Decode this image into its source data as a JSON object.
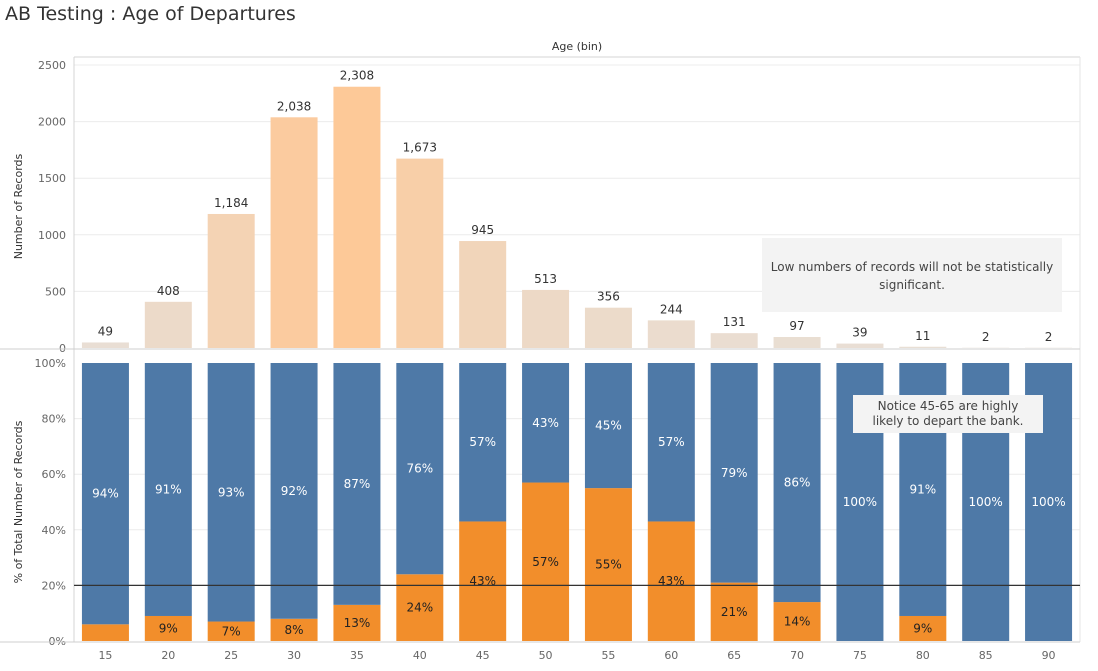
{
  "page": {
    "title": "AB Testing : Age of Departures"
  },
  "colors": {
    "stay_bar": "#4e79a7",
    "depart_bar": "#f28e2b",
    "count_scale_low": "#e8dfd6",
    "count_scale_high": "#fdc998",
    "grid": "#ececec",
    "reference_line": "#333333",
    "note_bg": "#f3f3f3"
  },
  "chart_data": [
    {
      "type": "bar",
      "title": "",
      "column_header": "Age (bin)",
      "xlabel": "",
      "ylabel": "Number of Records",
      "categories": [
        "15",
        "20",
        "25",
        "30",
        "35",
        "40",
        "45",
        "50",
        "55",
        "60",
        "65",
        "70",
        "75",
        "80",
        "85",
        "90"
      ],
      "values": [
        49,
        408,
        1184,
        2038,
        2308,
        1673,
        945,
        513,
        356,
        244,
        131,
        97,
        39,
        11,
        2,
        2
      ],
      "value_labels": [
        "49",
        "408",
        "1,184",
        "2,038",
        "2,308",
        "1,673",
        "945",
        "513",
        "356",
        "244",
        "131",
        "97",
        "39",
        "11",
        "2",
        "2"
      ],
      "ylim": [
        0,
        2500
      ],
      "yticks": [
        "0",
        "500",
        "1000",
        "1500",
        "2000",
        "2500"
      ],
      "yticks_values": [
        0,
        500,
        1000,
        1500,
        2000,
        2500
      ],
      "color_encoding": "sequential by count (grey to orange)",
      "grid": true,
      "annotation": "Low numbers of records will not be statistically significant."
    },
    {
      "type": "bar",
      "stacked": true,
      "title": "",
      "xlabel": "",
      "ylabel": "% of Total Number of Records",
      "categories": [
        "15",
        "20",
        "25",
        "30",
        "35",
        "40",
        "45",
        "50",
        "55",
        "60",
        "65",
        "70",
        "75",
        "80",
        "85",
        "90"
      ],
      "series": [
        {
          "color": "#4e79a7",
          "values": [
            94,
            91,
            93,
            92,
            87,
            76,
            57,
            43,
            45,
            57,
            79,
            86,
            100,
            91,
            100,
            100
          ],
          "labels": [
            "94%",
            "91%",
            "93%",
            "92%",
            "87%",
            "76%",
            "57%",
            "43%",
            "45%",
            "57%",
            "79%",
            "86%",
            "100%",
            "91%",
            "100%",
            "100%"
          ]
        },
        {
          "color": "#f28e2b",
          "values": [
            6,
            9,
            7,
            8,
            13,
            24,
            43,
            57,
            55,
            43,
            21,
            14,
            0,
            9,
            0,
            0
          ],
          "labels": [
            "",
            "9%",
            "7%",
            "8%",
            "13%",
            "24%",
            "43%",
            "57%",
            "55%",
            "43%",
            "21%",
            "14%",
            "",
            "9%",
            "",
            ""
          ]
        }
      ],
      "ylim": [
        0,
        100
      ],
      "yticks": [
        "0%",
        "20%",
        "40%",
        "60%",
        "80%",
        "100%"
      ],
      "yticks_values": [
        0,
        20,
        40,
        60,
        80,
        100
      ],
      "reference_line": 20,
      "grid": true,
      "annotation": "Notice 45-65 are highly likely to depart the bank."
    }
  ]
}
